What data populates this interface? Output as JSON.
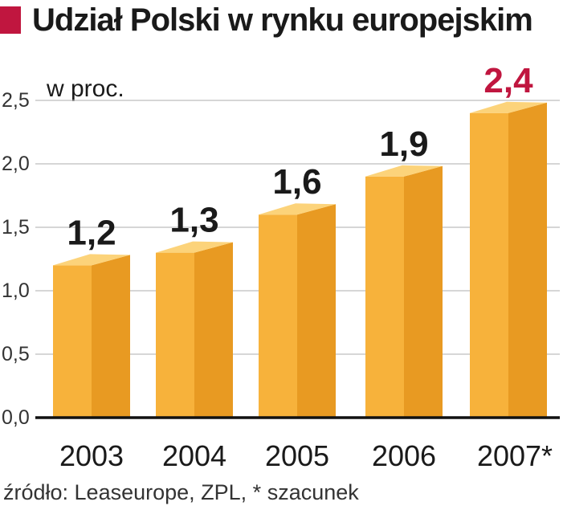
{
  "colors": {
    "accent": "#c0163f",
    "bar_front": "#f7b23b",
    "bar_side": "#e89a22",
    "bar_top": "#fcd37a",
    "grid": "#bdbdbd",
    "text": "#1a1a1a"
  },
  "title": "Udział Polski w rynku europejskim",
  "source": "źródło: Leaseurope, ZPL, * szacunek",
  "chart_data": {
    "type": "bar",
    "title": "Udział Polski w rynku europejskim",
    "ylabel": "w proc.",
    "xlabel": "",
    "categories": [
      "2003",
      "2004",
      "2005",
      "2006",
      "2007*"
    ],
    "values": [
      1.2,
      1.3,
      1.6,
      1.9,
      2.4
    ],
    "value_labels": [
      "1,2",
      "1,3",
      "1,6",
      "1,9",
      "2,4"
    ],
    "highlight_index": 4,
    "ylim": [
      0,
      2.5
    ],
    "yticks": [
      0,
      0.5,
      1.0,
      1.5,
      2.0,
      2.5
    ],
    "ytick_labels": [
      "0,0",
      "0,5",
      "1,0",
      "1,5",
      "2,0",
      "2,5"
    ],
    "grid": true,
    "legend": "none"
  }
}
